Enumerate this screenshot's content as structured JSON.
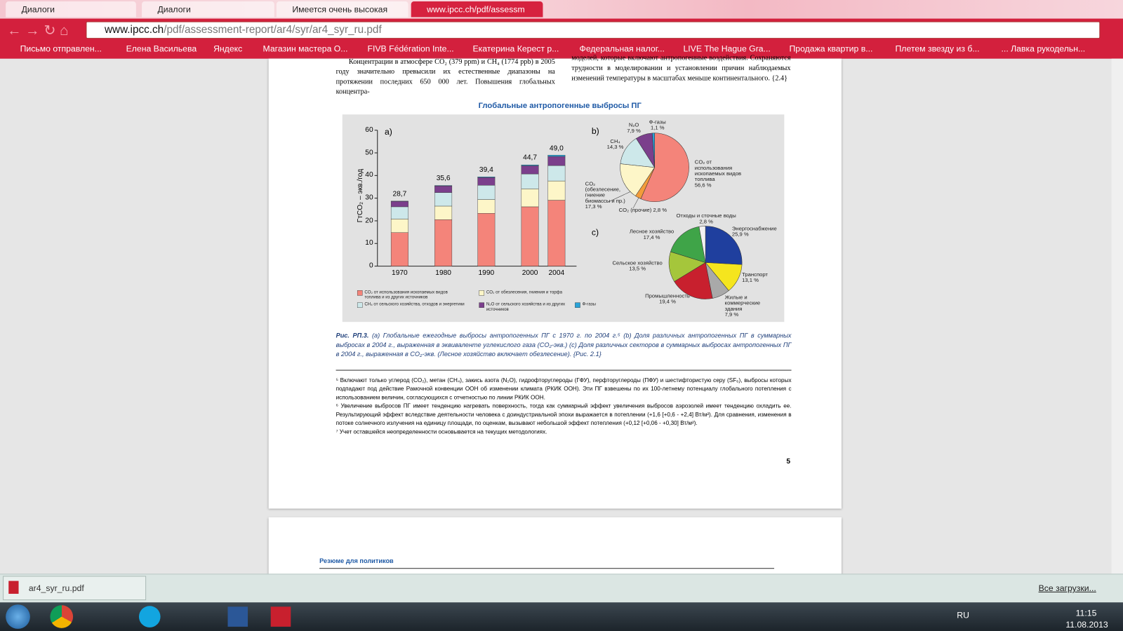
{
  "browser": {
    "tabs": [
      "Диалоги",
      "Диалоги",
      "Имеется очень высокая",
      "www.ipcc.ch/pdf/assessm"
    ],
    "url": {
      "host": "www.ipcc.ch",
      "path": "/pdf/assessment-report/ar4/syr/ar4_syr_ru.pdf"
    },
    "bookmarks": [
      "Письмо отправлен...",
      "Елена Васильева",
      "Яндекс",
      "Магазин мастера О...",
      "FIVB Fédération Inte...",
      "Екатерина Керест р...",
      "Федеральная налог...",
      "LIVE The Hague Gra...",
      "Продажа квартир в...",
      "Плетем звезду из б...",
      "... Лавка рукодельн..."
    ]
  },
  "document": {
    "left_column": "Концентрации в атмосфере CO₂ (379 ppm) и CH₄ (1774 ppb) в 2005 году значительно превысили их естественные диапазоны на протяжении последних 650 000 лет. Повышения глобальных концентра-",
    "right_column": "моделей, которые включают антропогенные воздействия. Сохраняются трудности в моделировании и установлении причин наблюдаемых изменений температуры в масштабах меньше континентального. {2.4}",
    "caption_label": "Рис. РП.3.",
    "caption": "(a) Глобальные ежегодные выбросы антропогенных ПГ с 1970 г. по 2004 г.⁵ (b) Доля различных антропогенных ПГ в суммарных выбросах в 2004 г., выраженная в эквиваленте углекислого газа (CO₂-экв.) (c) Доля различных секторов в суммарных выбросах антропогенных ПГ в 2004 г., выраженная в CO₂-экв. (Лесное хозяйство включает обезлесение). {Рис. 2.1}",
    "footnotes": [
      "⁵ Включают только углерод (CO₂), метан (CH₄), закись азота (N₂O), гидрофторуглероды (ГФУ), перфторуглероды (ПФУ) и шестифтористую серу (SF₆), выбросы которых подпадают под действие Рамочной конвенции ООН об изменении климата (РКИК ООН). Эти ПГ взвешены по их 100-летнему потенциалу глобального потепления с использованием величин, согласующихся с отчетностью по линии РКИК ООН.",
      "⁶ Увеличение выбросов ПГ имеет тенденцию нагревать поверхность, тогда как суммарный эффект увеличения выбросов аэрозолей имеет тенденцию охладить ее. Результирующий эффект вследствие деятельности человека с доиндустриальной эпохи выражается в потеплении (+1,6 [+0,6 - +2,4] Вт/м²). Для сравнения, изменения в потоке солнечного излучения на единицу площади, по оценкам, вызывают небольшой эффект потепления (+0,12 [+0,06 - +0,30] Вт/м²).",
      "⁷ Учет оставшейся неопределенности основывается на текущих методологиях."
    ],
    "page_number": "5",
    "next_page_header": "Резюме для политиков"
  },
  "figure": {
    "title": "Глобальные антропогенные выбросы ПГ",
    "charts": [
      {
        "type": "bar",
        "stacked": true,
        "panel": "a)",
        "y_label": "ГтCO₂ – экв./год",
        "categories": [
          "1970",
          "1980",
          "1990",
          "2000",
          "2004"
        ],
        "ylim": [
          0,
          60
        ],
        "yticks": [
          0,
          10,
          20,
          30,
          40,
          50,
          60
        ],
        "series": [
          {
            "name": "CO₂ от использования ископаемых видов топлива и из других источников",
            "color": "#f4847a",
            "values": [
              14.8,
              20.5,
              23.3,
              26.2,
              29.1
            ]
          },
          {
            "name": "CO₂ от обезлесения, гниения и торфа",
            "color": "#fdf6c8",
            "values": [
              6.0,
              6.0,
              6.1,
              7.9,
              8.5
            ]
          },
          {
            "name": "CH₄ от сельского хозяйства, отходов и энергетики",
            "color": "#cde8ea",
            "values": [
              5.4,
              6.0,
              6.3,
              6.6,
              6.8
            ]
          },
          {
            "name": "N₂O от сельского хозяйства и из других источников",
            "color": "#7b3f8c",
            "values": [
              2.4,
              2.9,
              3.4,
              3.6,
              4.0
            ]
          },
          {
            "name": "Ф-газы",
            "color": "#29a3d8",
            "values": [
              0.1,
              0.2,
              0.3,
              0.4,
              0.6
            ]
          }
        ],
        "totals": [
          28.7,
          35.6,
          39.4,
          44.7,
          49.0
        ],
        "total_labels": [
          "28,7",
          "35,6",
          "39,4",
          "44,7",
          "49,0"
        ]
      },
      {
        "type": "pie",
        "panel": "b)",
        "categories": [
          "CO₂ от использования ископаемых видов топлива",
          "CO₂ (прочие)",
          "CO₂ (обезлесение, гниение биомассы и пр.)",
          "CH₄",
          "N₂O",
          "Ф-газы"
        ],
        "values": [
          56.6,
          2.8,
          17.3,
          14.3,
          7.9,
          1.1
        ],
        "value_labels": [
          "56,6 %",
          "2,8 %",
          "17,3 %",
          "14,3 %",
          "7,9 %",
          "1,1 %"
        ],
        "colors": [
          "#f4847a",
          "#f39c3a",
          "#fdf6c8",
          "#cde8ea",
          "#7b3f8c",
          "#29a3d8"
        ]
      },
      {
        "type": "pie",
        "panel": "c)",
        "categories": [
          "Энергоснабжение",
          "Транспорт",
          "Жилые и коммерческие здания",
          "Промышленность",
          "Сельское хозяйство",
          "Лесное хозяйство",
          "Отходы и сточные воды"
        ],
        "values": [
          25.9,
          13.1,
          7.9,
          19.4,
          13.5,
          17.4,
          2.8
        ],
        "value_labels": [
          "25,9 %",
          "13,1 %",
          "7,9 %",
          "19,4 %",
          "13,5 %",
          "17,4 %",
          "2,8 %"
        ],
        "colors": [
          "#1f3f9e",
          "#f5e51e",
          "#a9a9a9",
          "#c8202e",
          "#a5c63b",
          "#3fa448",
          "#f2f2f2"
        ]
      }
    ]
  },
  "downloads": {
    "file": "ar4_syr_ru.pdf",
    "all": "Все загрузки..."
  },
  "taskbar": {
    "lang": "RU",
    "time": "11:15",
    "date": "11.08.2013"
  }
}
